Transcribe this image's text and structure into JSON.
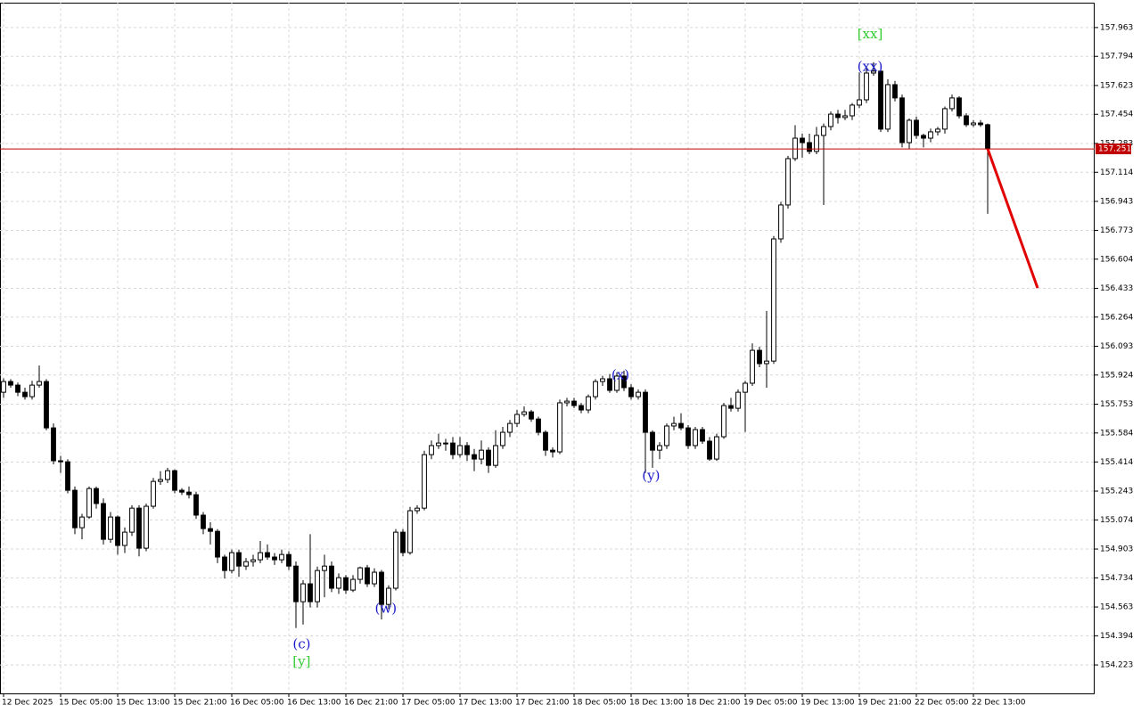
{
  "chart_data": {
    "type": "candlestick",
    "categories": [
      "12 Dec 2025",
      null,
      null,
      null,
      null,
      null,
      null,
      null,
      "15 Dec 05:00",
      null,
      null,
      null,
      null,
      null,
      null,
      null,
      "15 Dec 13:00",
      null,
      null,
      null,
      null,
      null,
      null,
      null,
      "15 Dec 21:00",
      null,
      null,
      null,
      null,
      null,
      null,
      null,
      "16 Dec 05:00",
      null,
      null,
      null,
      null,
      null,
      null,
      null,
      "16 Dec 13:00",
      null,
      null,
      null,
      null,
      null,
      null,
      null,
      "16 Dec 21:00",
      null,
      null,
      null,
      null,
      null,
      null,
      null,
      "17 Dec 05:00",
      null,
      null,
      null,
      null,
      null,
      null,
      null,
      "17 Dec 13:00",
      null,
      null,
      null,
      null,
      null,
      null,
      null,
      "17 Dec 21:00",
      null,
      null,
      null,
      null,
      null,
      null,
      null,
      "18 Dec 05:00",
      null,
      null,
      null,
      null,
      null,
      null,
      null,
      "18 Dec 13:00",
      null,
      null,
      null,
      null,
      null,
      null,
      null,
      "18 Dec 21:00",
      null,
      null,
      null,
      null,
      null,
      null,
      null,
      "19 Dec 05:00",
      null,
      null,
      null,
      null,
      null,
      null,
      null,
      "19 Dec 13:00",
      null,
      null,
      null,
      null,
      null,
      null,
      null,
      "19 Dec 21:00",
      null,
      null,
      null,
      null,
      null,
      null,
      null,
      "22 Dec 05:00",
      null,
      null,
      null,
      null,
      null,
      null,
      null,
      "22 Dec 13:00",
      null,
      null
    ],
    "open": [
      155.823,
      155.886,
      155.865,
      155.823,
      155.797,
      155.865,
      155.886,
      155.614,
      155.421,
      155.415,
      155.248,
      155.028,
      155.091,
      155.258,
      155.17,
      154.96,
      155.091,
      154.924,
      155.002,
      155.143,
      154.908,
      155.154,
      155.3,
      155.311,
      155.363,
      155.248,
      155.237,
      155.222,
      155.102,
      155.023,
      155.007,
      154.856,
      154.777,
      154.882,
      154.803,
      154.829,
      154.84,
      154.882,
      154.856,
      154.84,
      154.871,
      154.803,
      154.594,
      154.699,
      154.594,
      154.777,
      154.803,
      154.673,
      154.735,
      154.662,
      154.725,
      154.793,
      154.699,
      154.767,
      154.578,
      154.673,
      155.002,
      154.882,
      155.128,
      155.143,
      155.457,
      155.51,
      155.525,
      155.525,
      155.457,
      155.51,
      155.457,
      155.431,
      155.483,
      155.394,
      155.51,
      155.588,
      155.64,
      155.693,
      155.708,
      155.666,
      155.588,
      155.483,
      155.473,
      155.761,
      155.771,
      155.745,
      155.719,
      155.797,
      155.886,
      155.902,
      155.834,
      155.918,
      155.85,
      155.797,
      155.823,
      155.588,
      155.483,
      155.51,
      155.625,
      155.64,
      155.614,
      155.51,
      155.604,
      155.536,
      155.431,
      155.562,
      155.745,
      155.729,
      155.823,
      155.876,
      156.069,
      155.991,
      156.006,
      156.723,
      156.922,
      157.194,
      157.314,
      157.288,
      157.236,
      157.33,
      157.382,
      157.455,
      157.435,
      157.445,
      157.508,
      157.539,
      157.696,
      157.707,
      157.367,
      157.628,
      157.55,
      157.288,
      157.419,
      157.33,
      157.314,
      157.351,
      157.367,
      157.487,
      157.55,
      157.445,
      157.393,
      157.403,
      157.393
    ],
    "high": [
      155.905,
      155.9,
      155.88,
      155.85,
      155.89,
      155.98,
      155.9,
      155.64,
      155.45,
      155.43,
      155.27,
      155.11,
      155.27,
      155.27,
      155.2,
      155.12,
      155.1,
      155.03,
      155.16,
      155.16,
      155.17,
      155.32,
      155.36,
      155.38,
      155.37,
      155.26,
      155.27,
      155.24,
      155.12,
      155.06,
      155.02,
      154.87,
      154.9,
      154.9,
      154.85,
      154.87,
      154.95,
      154.93,
      154.88,
      154.9,
      154.89,
      154.83,
      154.72,
      154.99,
      154.8,
      154.87,
      154.83,
      154.76,
      154.75,
      154.75,
      154.8,
      154.81,
      154.79,
      154.78,
      154.69,
      155.02,
      155.02,
      155.15,
      155.16,
      155.48,
      155.54,
      155.58,
      155.55,
      155.56,
      155.56,
      155.53,
      155.49,
      155.54,
      155.5,
      155.6,
      155.62,
      155.66,
      155.72,
      155.74,
      155.72,
      155.68,
      155.6,
      155.5,
      155.78,
      155.79,
      155.79,
      155.76,
      155.81,
      155.9,
      155.92,
      155.93,
      155.94,
      155.95,
      155.87,
      155.84,
      155.84,
      155.6,
      155.53,
      155.64,
      155.68,
      155.7,
      155.63,
      155.62,
      155.62,
      155.56,
      155.58,
      155.76,
      155.79,
      155.84,
      155.89,
      156.11,
      156.09,
      156.3,
      156.74,
      156.94,
      157.21,
      157.39,
      157.34,
      157.34,
      157.38,
      157.4,
      157.47,
      157.48,
      157.48,
      157.52,
      157.7,
      157.733,
      157.76,
      157.72,
      157.66,
      157.65,
      157.57,
      157.43,
      157.44,
      157.34,
      157.37,
      157.38,
      157.5,
      157.57,
      157.56,
      157.46,
      157.42,
      157.42,
      157.4
    ],
    "low": [
      155.79,
      155.85,
      155.8,
      155.78,
      155.78,
      155.85,
      155.6,
      155.4,
      155.35,
      155.23,
      154.99,
      154.96,
      155.08,
      155.14,
      154.93,
      154.94,
      154.87,
      154.88,
      154.98,
      154.86,
      154.89,
      155.14,
      155.28,
      155.29,
      155.23,
      155.22,
      155.2,
      155.08,
      154.99,
      154.93,
      154.82,
      154.73,
      154.76,
      154.74,
      154.78,
      154.8,
      154.82,
      154.84,
      154.81,
      154.82,
      154.78,
      154.44,
      154.46,
      154.56,
      154.56,
      154.62,
      154.65,
      154.64,
      154.64,
      154.65,
      154.7,
      154.68,
      154.68,
      154.49,
      154.55,
      154.66,
      154.86,
      154.87,
      155.11,
      155.13,
      155.43,
      155.49,
      155.48,
      155.43,
      155.44,
      155.42,
      155.36,
      155.4,
      155.35,
      155.38,
      155.49,
      155.56,
      155.62,
      155.68,
      155.65,
      155.57,
      155.45,
      155.44,
      155.46,
      155.74,
      155.73,
      155.7,
      155.7,
      155.78,
      155.86,
      155.82,
      155.82,
      155.83,
      155.78,
      155.78,
      155.35,
      155.38,
      155.43,
      155.49,
      155.6,
      155.6,
      155.49,
      155.49,
      155.52,
      155.42,
      155.42,
      155.55,
      155.71,
      155.71,
      155.59,
      155.86,
      155.97,
      155.85,
      155.99,
      156.7,
      156.9,
      157.18,
      157.2,
      157.22,
      157.22,
      156.922,
      157.36,
      157.4,
      157.42,
      157.42,
      157.49,
      157.52,
      157.68,
      157.35,
      157.35,
      157.53,
      157.26,
      157.25,
      157.31,
      157.26,
      157.29,
      157.33,
      157.34,
      157.47,
      157.43,
      157.38,
      157.38,
      157.38,
      156.87
    ],
    "close": [
      155.886,
      155.865,
      155.823,
      155.797,
      155.865,
      155.886,
      155.614,
      155.421,
      155.415,
      155.248,
      155.028,
      155.091,
      155.258,
      155.17,
      154.96,
      155.091,
      154.924,
      155.002,
      155.143,
      154.908,
      155.154,
      155.3,
      155.311,
      155.363,
      155.248,
      155.237,
      155.222,
      155.102,
      155.023,
      155.007,
      154.856,
      154.777,
      154.882,
      154.803,
      154.829,
      154.84,
      154.882,
      154.856,
      154.84,
      154.871,
      154.803,
      154.594,
      154.699,
      154.594,
      154.777,
      154.803,
      154.673,
      154.735,
      154.662,
      154.725,
      154.793,
      154.699,
      154.767,
      154.578,
      154.673,
      155.002,
      154.882,
      155.128,
      155.143,
      155.457,
      155.51,
      155.525,
      155.525,
      155.457,
      155.51,
      155.457,
      155.431,
      155.483,
      155.394,
      155.51,
      155.588,
      155.64,
      155.693,
      155.708,
      155.666,
      155.588,
      155.483,
      155.473,
      155.761,
      155.771,
      155.745,
      155.719,
      155.797,
      155.886,
      155.902,
      155.834,
      155.918,
      155.85,
      155.797,
      155.823,
      155.588,
      155.483,
      155.51,
      155.625,
      155.64,
      155.614,
      155.51,
      155.604,
      155.536,
      155.431,
      155.562,
      155.745,
      155.729,
      155.823,
      155.876,
      156.069,
      155.991,
      156.006,
      156.723,
      156.922,
      157.194,
      157.314,
      157.288,
      157.236,
      157.33,
      157.382,
      157.455,
      157.435,
      157.445,
      157.508,
      157.539,
      157.696,
      157.707,
      157.367,
      157.628,
      157.55,
      157.288,
      157.419,
      157.33,
      157.314,
      157.351,
      157.367,
      157.487,
      157.55,
      157.445,
      157.393,
      157.403,
      157.393,
      157.251
    ],
    "up_color": "#ffffff",
    "down_color": "#000000",
    "xlim": [
      -0.5,
      153
    ],
    "ylim": [
      154.056,
      158.109
    ],
    "yticks": [
      157.963,
      157.794,
      157.623,
      157.454,
      157.283,
      157.114,
      156.943,
      156.773,
      156.604,
      156.433,
      156.264,
      156.093,
      155.924,
      155.753,
      155.584,
      155.414,
      155.243,
      155.074,
      154.903,
      154.734,
      154.563,
      154.394,
      154.223
    ],
    "grid": true,
    "current_price": 157.251,
    "current_price_color": "#c00000",
    "forecast": {
      "index": [
        138,
        145
      ],
      "price": [
        157.251,
        156.435
      ],
      "color": "#e00000"
    },
    "annotations": [
      {
        "text": "[xx]",
        "index": 121.5,
        "price": 157.92,
        "color": "#33cc33"
      },
      {
        "text": "(xx)",
        "index": 121.5,
        "price": 157.73,
        "color": "#1a1acc"
      },
      {
        "text": "(x)",
        "index": 86.5,
        "price": 155.92,
        "color": "#1a1acc"
      },
      {
        "text": "(y)",
        "index": 90.8,
        "price": 155.33,
        "color": "#1a1acc"
      },
      {
        "text": "(w)",
        "index": 53.6,
        "price": 154.55,
        "color": "#1a1acc"
      },
      {
        "text": "(c)",
        "index": 41.8,
        "price": 154.34,
        "color": "#1a1acc"
      },
      {
        "text": "[y]",
        "index": 41.8,
        "price": 154.24,
        "color": "#33cc33"
      }
    ]
  }
}
